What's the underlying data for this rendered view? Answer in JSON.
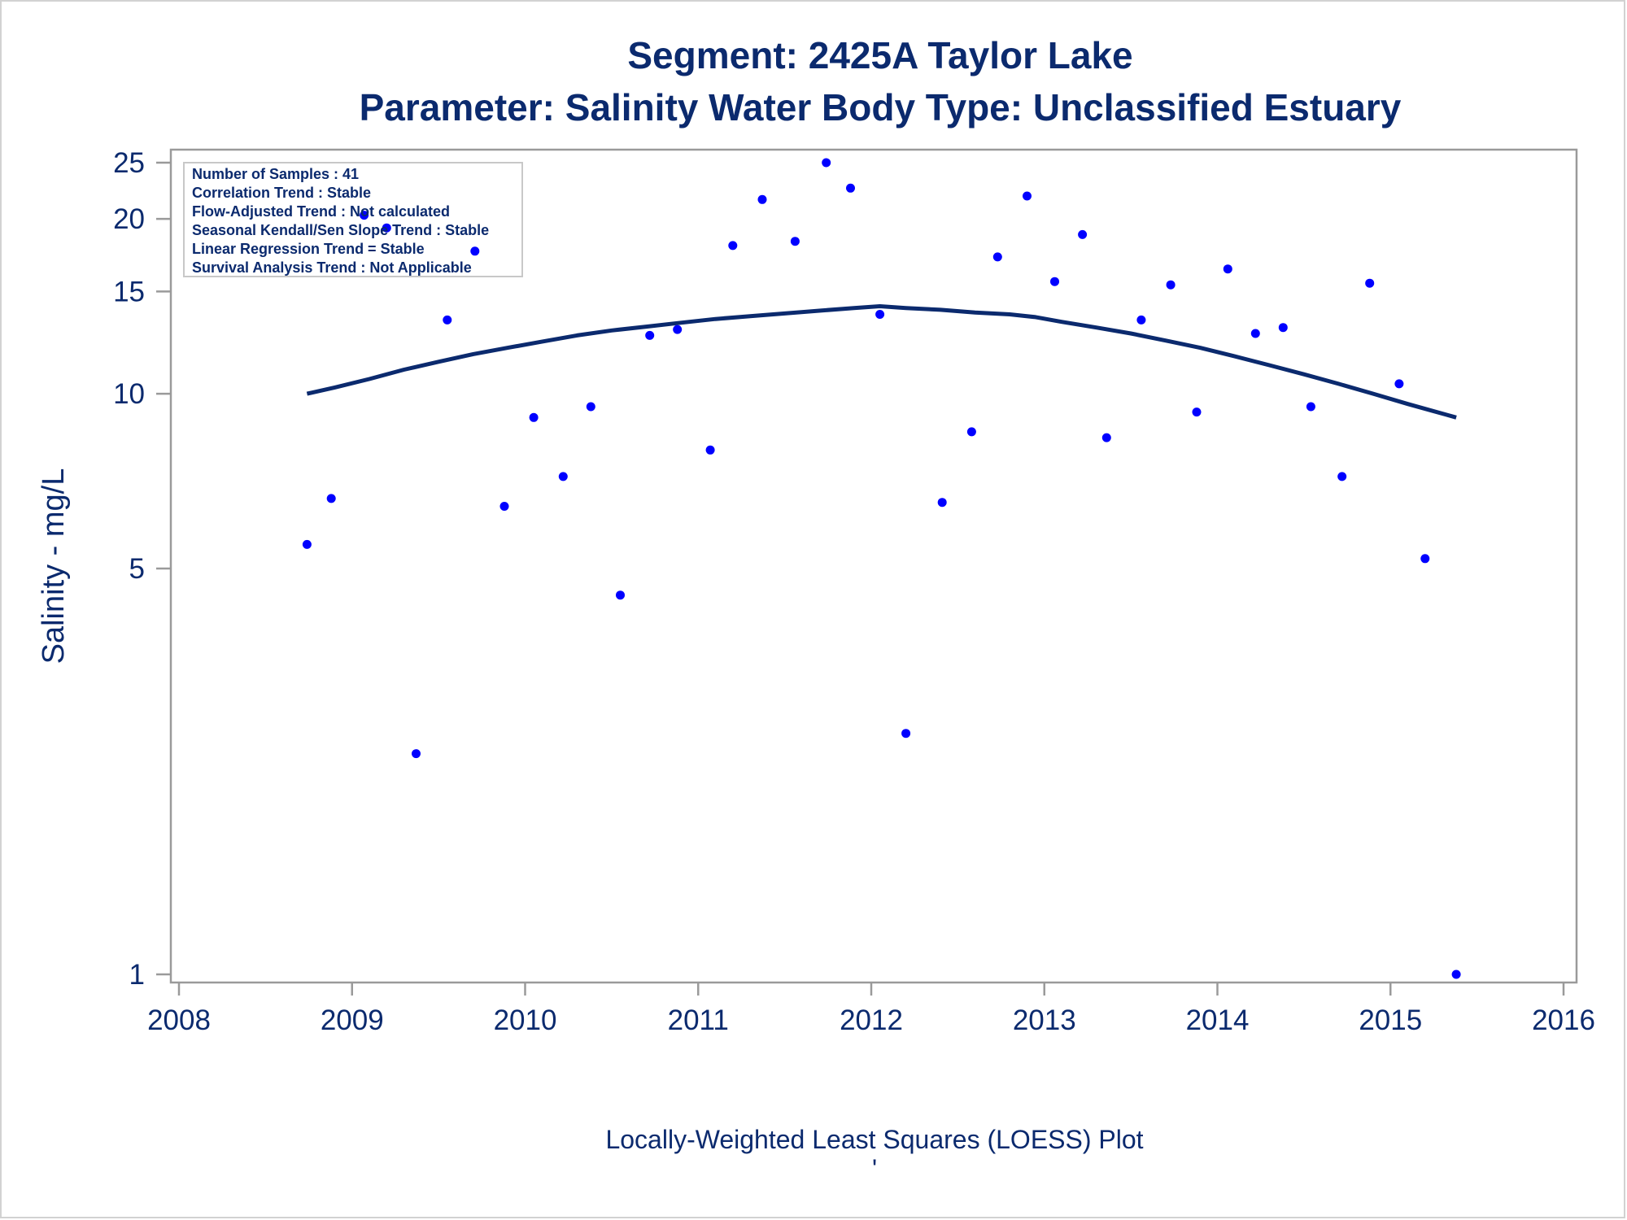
{
  "chart_data": {
    "type": "scatter",
    "title": "Segment: 2425A  Taylor Lake",
    "subtitle": "Parameter: Salinity   Water Body Type: Unclassified Estuary",
    "xlabel": "Locally-Weighted Least Squares (LOESS) Plot",
    "ylabel": "Salinity - mg/L",
    "footnote_mark": "'",
    "xlim": [
      2008,
      2016
    ],
    "ylim": [
      1,
      25
    ],
    "yscale": "log",
    "x_ticks": [
      "2008",
      "2009",
      "2010",
      "2011",
      "2012",
      "2013",
      "2014",
      "2015",
      "2016"
    ],
    "y_ticks": [
      "1",
      "5",
      "10",
      "15",
      "20",
      "25"
    ],
    "grid": false,
    "inset_stats": [
      "Number of Samples : 41",
      "Correlation Trend : Stable",
      "Flow-Adjusted Trend : Not calculated",
      "Seasonal Kendall/Sen Slope Trend : Stable",
      "Linear Regression Trend = Stable",
      "Survival Analysis Trend : Not Applicable"
    ],
    "series": [
      {
        "type": "scatter",
        "color": "#0000ff",
        "points": [
          [
            2008.74,
            5.5
          ],
          [
            2008.88,
            6.6
          ],
          [
            2009.07,
            20.3
          ],
          [
            2009.2,
            19.3
          ],
          [
            2009.37,
            2.4
          ],
          [
            2009.55,
            13.4
          ],
          [
            2009.71,
            17.6
          ],
          [
            2009.88,
            6.4
          ],
          [
            2010.05,
            9.1
          ],
          [
            2010.22,
            7.2
          ],
          [
            2010.38,
            9.5
          ],
          [
            2010.55,
            4.5
          ],
          [
            2010.72,
            12.6
          ],
          [
            2010.88,
            12.9
          ],
          [
            2011.07,
            8.0
          ],
          [
            2011.2,
            18.0
          ],
          [
            2011.37,
            21.6
          ],
          [
            2011.56,
            18.3
          ],
          [
            2011.74,
            25.0
          ],
          [
            2011.88,
            22.6
          ],
          [
            2012.05,
            13.7
          ],
          [
            2012.2,
            2.6
          ],
          [
            2012.41,
            6.5
          ],
          [
            2012.58,
            8.6
          ],
          [
            2012.73,
            17.2
          ],
          [
            2012.9,
            21.9
          ],
          [
            2013.06,
            15.6
          ],
          [
            2013.22,
            18.8
          ],
          [
            2013.36,
            8.4
          ],
          [
            2013.56,
            13.4
          ],
          [
            2013.73,
            15.4
          ],
          [
            2013.88,
            9.3
          ],
          [
            2014.06,
            16.4
          ],
          [
            2014.22,
            12.7
          ],
          [
            2014.38,
            13.0
          ],
          [
            2014.54,
            9.5
          ],
          [
            2014.72,
            7.2
          ],
          [
            2014.88,
            15.5
          ],
          [
            2015.05,
            10.4
          ],
          [
            2015.2,
            5.2
          ],
          [
            2015.38,
            1.0
          ]
        ]
      },
      {
        "type": "line",
        "name": "LOESS",
        "color": "#0b2a6e",
        "points": [
          [
            2008.74,
            10.0
          ],
          [
            2008.9,
            10.25
          ],
          [
            2009.1,
            10.6
          ],
          [
            2009.3,
            11.0
          ],
          [
            2009.5,
            11.35
          ],
          [
            2009.7,
            11.7
          ],
          [
            2009.9,
            12.0
          ],
          [
            2010.1,
            12.3
          ],
          [
            2010.3,
            12.6
          ],
          [
            2010.5,
            12.85
          ],
          [
            2010.7,
            13.05
          ],
          [
            2010.9,
            13.25
          ],
          [
            2011.1,
            13.45
          ],
          [
            2011.3,
            13.6
          ],
          [
            2011.5,
            13.75
          ],
          [
            2011.7,
            13.9
          ],
          [
            2011.9,
            14.05
          ],
          [
            2012.05,
            14.15
          ],
          [
            2012.2,
            14.05
          ],
          [
            2012.4,
            13.95
          ],
          [
            2012.6,
            13.8
          ],
          [
            2012.8,
            13.7
          ],
          [
            2012.95,
            13.55
          ],
          [
            2013.1,
            13.3
          ],
          [
            2013.3,
            13.0
          ],
          [
            2013.5,
            12.7
          ],
          [
            2013.7,
            12.35
          ],
          [
            2013.9,
            12.0
          ],
          [
            2014.1,
            11.6
          ],
          [
            2014.3,
            11.2
          ],
          [
            2014.5,
            10.8
          ],
          [
            2014.7,
            10.4
          ],
          [
            2014.9,
            10.0
          ],
          [
            2015.1,
            9.6
          ],
          [
            2015.38,
            9.1
          ]
        ]
      }
    ]
  }
}
